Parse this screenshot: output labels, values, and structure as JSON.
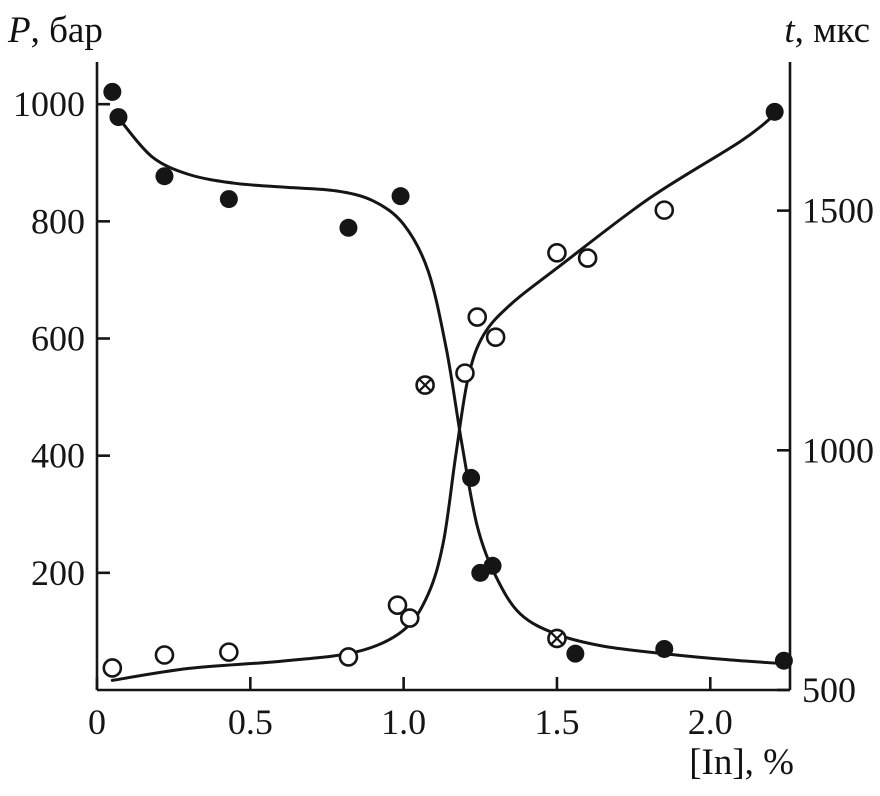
{
  "figure": {
    "background": "#ffffff",
    "ink": "#151515"
  },
  "chart_data": {
    "type": "scatter",
    "title": "",
    "x_axis": {
      "label": "[In], %",
      "min": 0,
      "max": 2.26,
      "ticks": [
        {
          "label": "0",
          "value": 0
        },
        {
          "label": "0.5",
          "value": 0.5
        },
        {
          "label": "1.0",
          "value": 1.0
        },
        {
          "label": "1.5",
          "value": 1.5
        },
        {
          "label": "2.0",
          "value": 2.0
        }
      ]
    },
    "y_left": {
      "label_var": "P",
      "label_unit": ", бар",
      "min": 0,
      "max": 1072,
      "ticks": [
        200,
        400,
        600,
        800,
        1000
      ]
    },
    "y_right": {
      "label_var": "t",
      "label_unit": ", мкс",
      "min": 500,
      "max": 1810,
      "ticks": [
        500,
        1000,
        1500
      ]
    },
    "series": [
      {
        "name": "pressure-P-filled-circles",
        "axis": "left",
        "marker": "filled",
        "points": [
          [
            0.05,
            1021
          ],
          [
            0.07,
            978
          ],
          [
            0.22,
            877
          ],
          [
            0.43,
            838
          ],
          [
            0.82,
            789
          ],
          [
            0.99,
            843
          ],
          [
            1.22,
            362
          ],
          [
            1.25,
            200
          ],
          [
            1.29,
            212
          ],
          [
            1.56,
            62
          ],
          [
            1.85,
            70
          ],
          [
            2.24,
            50
          ]
        ]
      },
      {
        "name": "delay-time-t-open-circles",
        "axis": "right",
        "marker": "open",
        "points": [
          [
            0.05,
            546
          ],
          [
            0.22,
            573
          ],
          [
            0.43,
            579
          ],
          [
            0.82,
            569
          ],
          [
            0.98,
            677
          ],
          [
            1.02,
            650
          ],
          [
            1.2,
            1161
          ],
          [
            1.24,
            1278
          ],
          [
            1.3,
            1236
          ],
          [
            1.5,
            1412
          ],
          [
            1.6,
            1401
          ],
          [
            1.85,
            1501
          ],
          [
            2.21,
            1706,
            "filled"
          ]
        ]
      },
      {
        "name": "crossed-circle-on-P-branch",
        "axis": "left",
        "marker": "crossed",
        "points": [
          [
            1.5,
            88
          ]
        ]
      },
      {
        "name": "crossed-circle-on-t-branch",
        "axis": "right",
        "marker": "crossed",
        "points": [
          [
            1.07,
            1136
          ]
        ]
      }
    ],
    "curves": [
      {
        "name": "P-trend-curve",
        "axis": "left",
        "points": [
          [
            0.08,
            970
          ],
          [
            0.18,
            910
          ],
          [
            0.3,
            880
          ],
          [
            0.45,
            865
          ],
          [
            0.62,
            858
          ],
          [
            0.78,
            852
          ],
          [
            0.9,
            835
          ],
          [
            1.0,
            795
          ],
          [
            1.08,
            715
          ],
          [
            1.14,
            580
          ],
          [
            1.19,
            420
          ],
          [
            1.24,
            280
          ],
          [
            1.3,
            195
          ],
          [
            1.38,
            130
          ],
          [
            1.5,
            95
          ],
          [
            1.65,
            75
          ],
          [
            1.85,
            62
          ],
          [
            2.05,
            52
          ],
          [
            2.24,
            45
          ]
        ]
      },
      {
        "name": "t-trend-curve",
        "axis": "right",
        "points": [
          [
            0.05,
            520
          ],
          [
            0.3,
            545
          ],
          [
            0.6,
            560
          ],
          [
            0.85,
            580
          ],
          [
            1.0,
            625
          ],
          [
            1.08,
            700
          ],
          [
            1.13,
            810
          ],
          [
            1.17,
            990
          ],
          [
            1.21,
            1150
          ],
          [
            1.26,
            1240
          ],
          [
            1.35,
            1305
          ],
          [
            1.5,
            1380
          ],
          [
            1.8,
            1525
          ],
          [
            2.1,
            1645
          ],
          [
            2.21,
            1700
          ]
        ]
      }
    ]
  }
}
